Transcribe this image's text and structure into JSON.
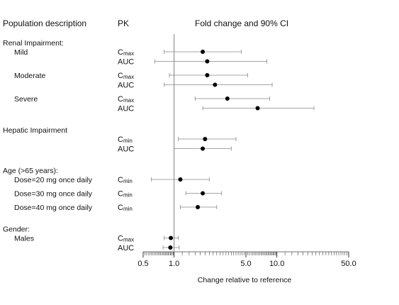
{
  "headers": {
    "population": "Population description",
    "pk": "PK",
    "fold_change": "Fold change and 90% CI"
  },
  "chart_data": {
    "type": "forest",
    "xscale": "log",
    "xlim": [
      0.5,
      50.0
    ],
    "reference_line": 1.0,
    "xlabel": "Change relative to reference",
    "xtick_labels": [
      "0.5",
      "1.0",
      "5.0",
      "10.0",
      "50.0"
    ],
    "xticks": [
      0.5,
      1.0,
      5.0,
      10.0,
      50.0
    ],
    "groups": [
      {
        "name": "Renal Impairment:",
        "subgroups": [
          {
            "label": "Mild",
            "rows": [
              {
                "pk": "Cmax",
                "pk_base": "C",
                "pk_sub": "max",
                "estimate": 1.9,
                "ci": [
                  0.8,
                  4.5
                ]
              },
              {
                "pk": "AUC",
                "pk_base": "AUC",
                "pk_sub": "",
                "estimate": 2.1,
                "ci": [
                  0.65,
                  8.0
                ]
              }
            ]
          },
          {
            "label": "Moderate",
            "rows": [
              {
                "pk": "Cmax",
                "pk_base": "C",
                "pk_sub": "max",
                "estimate": 2.1,
                "ci": [
                  0.9,
                  5.2
                ]
              },
              {
                "pk": "AUC",
                "pk_base": "AUC",
                "pk_sub": "",
                "estimate": 2.5,
                "ci": [
                  0.8,
                  9.0
                ]
              }
            ]
          },
          {
            "label": "Severe",
            "rows": [
              {
                "pk": "Cmax",
                "pk_base": "C",
                "pk_sub": "max",
                "estimate": 3.3,
                "ci": [
                  1.6,
                  8.5
                ]
              },
              {
                "pk": "AUC",
                "pk_base": "AUC",
                "pk_sub": "",
                "estimate": 6.5,
                "ci": [
                  1.9,
                  23.0
                ]
              }
            ]
          }
        ]
      },
      {
        "name": "Hepatic Impairment",
        "subgroups": [
          {
            "label": "",
            "rows": [
              {
                "pk": "Cmin",
                "pk_base": "C",
                "pk_sub": "min",
                "estimate": 2.0,
                "ci": [
                  1.1,
                  4.0
                ]
              },
              {
                "pk": "AUC",
                "pk_base": "AUC",
                "pk_sub": "",
                "estimate": 1.9,
                "ci": [
                  1.0,
                  3.6
                ]
              }
            ]
          }
        ]
      },
      {
        "name": "Age (>65 years):",
        "subgroups": [
          {
            "label": "Dose=20 mg once daily",
            "rows": [
              {
                "pk": "Cmin",
                "pk_base": "C",
                "pk_sub": "min",
                "estimate": 1.15,
                "ci": [
                  0.6,
                  2.2
                ]
              }
            ]
          },
          {
            "label": "Dose=30 mg once daily",
            "rows": [
              {
                "pk": "Cmin",
                "pk_base": "C",
                "pk_sub": "min",
                "estimate": 1.9,
                "ci": [
                  1.3,
                  2.9
                ]
              }
            ]
          },
          {
            "label": "Dose=40 mg once daily",
            "rows": [
              {
                "pk": "Cmin",
                "pk_base": "C",
                "pk_sub": "min",
                "estimate": 1.7,
                "ci": [
                  1.15,
                  2.6
                ]
              }
            ]
          }
        ]
      },
      {
        "name": "Gender:",
        "subgroups": [
          {
            "label": "Males",
            "rows": [
              {
                "pk": "Cmax",
                "pk_base": "C",
                "pk_sub": "max",
                "estimate": 0.93,
                "ci": [
                  0.8,
                  1.1
                ]
              },
              {
                "pk": "AUC",
                "pk_base": "AUC",
                "pk_sub": "",
                "estimate": 0.92,
                "ci": [
                  0.78,
                  1.12
                ]
              }
            ]
          }
        ]
      }
    ]
  }
}
